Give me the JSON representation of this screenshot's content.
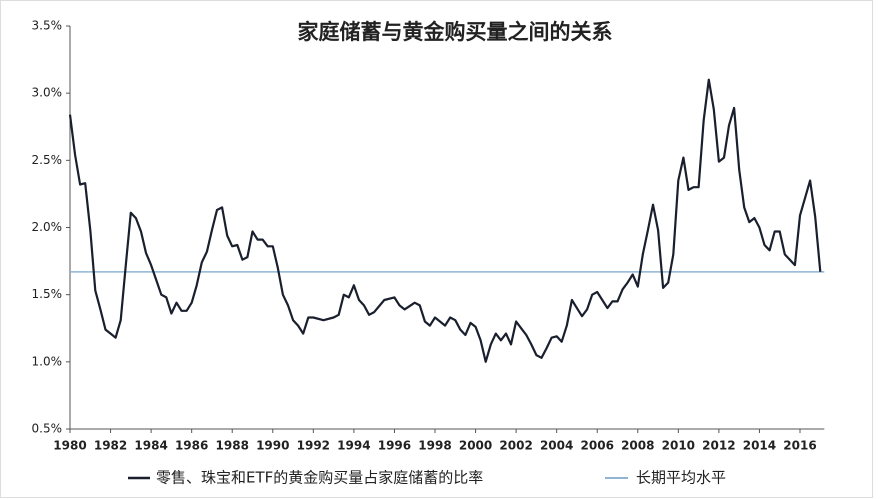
{
  "chart_data": {
    "type": "line",
    "title": "家庭储蓄与黄金购买量之间的关系",
    "xlim": [
      1980,
      2017.2
    ],
    "xticks": [
      1980,
      1982,
      1984,
      1986,
      1988,
      1990,
      1992,
      1994,
      1996,
      1998,
      2000,
      2002,
      2004,
      2006,
      2008,
      2010,
      2012,
      2014,
      2016
    ],
    "ylim": [
      0.5,
      3.5
    ],
    "yticks": [
      {
        "value": 0.5,
        "label": "0.5%"
      },
      {
        "value": 1.0,
        "label": "1.0%"
      },
      {
        "value": 1.5,
        "label": "1.5%"
      },
      {
        "value": 2.0,
        "label": "2.0%"
      },
      {
        "value": 2.5,
        "label": "2.5%"
      },
      {
        "value": 3.0,
        "label": "3.0%"
      },
      {
        "value": 3.5,
        "label": "3.5%"
      }
    ],
    "grid": false,
    "legend": "bottom",
    "x": [
      1980,
      1980.25,
      1980.5,
      1980.75,
      1981,
      1981.25,
      1981.5,
      1981.75,
      1982,
      1982.25,
      1982.5,
      1982.75,
      1983,
      1983.25,
      1983.5,
      1983.75,
      1984,
      1984.25,
      1984.5,
      1984.75,
      1985,
      1985.25,
      1985.5,
      1985.75,
      1986,
      1986.25,
      1986.5,
      1986.75,
      1987,
      1987.25,
      1987.5,
      1987.75,
      1988,
      1988.25,
      1988.5,
      1988.75,
      1989,
      1989.25,
      1989.5,
      1989.75,
      1990,
      1990.25,
      1990.5,
      1990.75,
      1991,
      1991.25,
      1991.5,
      1991.75,
      1992,
      1992.5,
      1993,
      1993.25,
      1993.5,
      1993.75,
      1994,
      1994.25,
      1994.5,
      1994.75,
      1995,
      1995.5,
      1996,
      1996.25,
      1996.5,
      1997,
      1997.25,
      1997.5,
      1997.75,
      1998,
      1998.5,
      1998.75,
      1999,
      1999.25,
      1999.5,
      1999.75,
      2000,
      2000.25,
      2000.5,
      2000.75,
      2001,
      2001.25,
      2001.5,
      2001.75,
      2002,
      2002.25,
      2002.5,
      2002.75,
      2003,
      2003.25,
      2003.5,
      2003.75,
      2004,
      2004.25,
      2004.5,
      2004.75,
      2005,
      2005.25,
      2005.5,
      2005.75,
      2006,
      2006.25,
      2006.5,
      2006.75,
      2007,
      2007.25,
      2007.5,
      2007.75,
      2008,
      2008.25,
      2008.5,
      2008.75,
      2009,
      2009.25,
      2009.5,
      2009.75,
      2010,
      2010.25,
      2010.5,
      2010.75,
      2011,
      2011.25,
      2011.5,
      2011.75,
      2012,
      2012.25,
      2012.5,
      2012.75,
      2013,
      2013.25,
      2013.5,
      2013.75,
      2014,
      2014.25,
      2014.5,
      2014.75,
      2015,
      2015.25,
      2015.75,
      2016,
      2016.5,
      2016.75,
      2017
    ],
    "series": [
      {
        "name": "零售、珠宝和ETF的黄金购买量占家庭储蓄的比率",
        "color": "#1a1f2e",
        "values": [
          2.84,
          2.54,
          2.32,
          2.33,
          1.98,
          1.53,
          1.39,
          1.24,
          1.21,
          1.18,
          1.31,
          1.72,
          2.11,
          2.07,
          1.97,
          1.81,
          1.72,
          1.61,
          1.5,
          1.48,
          1.36,
          1.44,
          1.38,
          1.38,
          1.44,
          1.57,
          1.74,
          1.82,
          1.98,
          2.13,
          2.15,
          1.94,
          1.86,
          1.87,
          1.76,
          1.78,
          1.97,
          1.91,
          1.91,
          1.86,
          1.86,
          1.7,
          1.5,
          1.42,
          1.31,
          1.27,
          1.21,
          1.33,
          1.33,
          1.31,
          1.33,
          1.35,
          1.5,
          1.48,
          1.57,
          1.46,
          1.42,
          1.35,
          1.37,
          1.46,
          1.48,
          1.42,
          1.39,
          1.44,
          1.42,
          1.3,
          1.27,
          1.33,
          1.27,
          1.33,
          1.31,
          1.24,
          1.2,
          1.29,
          1.26,
          1.16,
          1.0,
          1.13,
          1.21,
          1.16,
          1.21,
          1.13,
          1.3,
          1.25,
          1.2,
          1.13,
          1.05,
          1.03,
          1.1,
          1.18,
          1.19,
          1.15,
          1.27,
          1.46,
          1.4,
          1.34,
          1.39,
          1.5,
          1.52,
          1.46,
          1.4,
          1.45,
          1.45,
          1.54,
          1.59,
          1.65,
          1.56,
          1.8,
          1.98,
          2.17,
          1.98,
          1.55,
          1.59,
          1.8,
          2.35,
          2.52,
          2.28,
          2.3,
          2.3,
          2.8,
          3.1,
          2.88,
          2.49,
          2.52,
          2.76,
          2.89,
          2.43,
          2.15,
          2.04,
          2.07,
          2.0,
          1.87,
          1.83,
          1.97,
          1.97,
          1.8,
          1.72,
          2.09,
          2.35,
          2.08,
          1.67
        ]
      }
    ],
    "average": {
      "name": "长期平均水平",
      "color": "#8fb4d4",
      "value": 1.67
    }
  }
}
